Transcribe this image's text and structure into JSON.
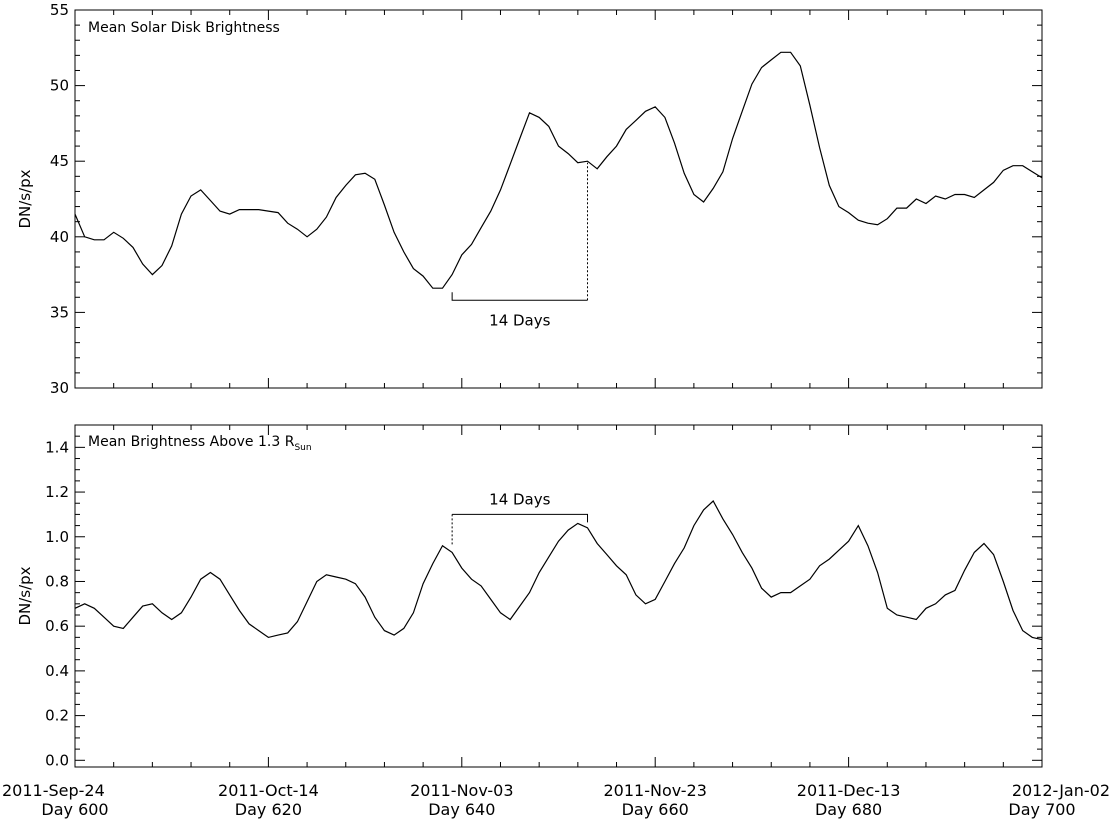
{
  "chart_data": [
    {
      "type": "line",
      "title": "Mean Solar Disk Brightness",
      "ylabel": "DN/s/px",
      "ylim": [
        30,
        55
      ],
      "xlim": [
        600,
        700
      ],
      "yticks": [
        "30",
        "35",
        "40",
        "45",
        "50",
        "55"
      ],
      "grid": false,
      "annotation": {
        "text": "14 Days",
        "start_day": 639,
        "end_day": 653,
        "bracket_value": 35.8,
        "anchor_value": 44.9
      },
      "series": [
        {
          "x": [
            600,
            601,
            602,
            603,
            604,
            605,
            606,
            607,
            608,
            609,
            610,
            611,
            612,
            613,
            614,
            615,
            616,
            617,
            618,
            619,
            620,
            621,
            622,
            623,
            624,
            625,
            626,
            627,
            628,
            629,
            630,
            631,
            632,
            633,
            634,
            635,
            636,
            637,
            638,
            639,
            640,
            641,
            642,
            643,
            644,
            645,
            646,
            647,
            648,
            649,
            650,
            651,
            652,
            653,
            654,
            655,
            656,
            657,
            658,
            659,
            660,
            661,
            662,
            663,
            664,
            665,
            666,
            667,
            668,
            669,
            670,
            671,
            672,
            673,
            674,
            675,
            676,
            677,
            678,
            679,
            680,
            681,
            682,
            683,
            684,
            685,
            686,
            687,
            688,
            689,
            690,
            691,
            692,
            693,
            694,
            695,
            696,
            697,
            698,
            699,
            700
          ],
          "values": [
            41.5,
            40.0,
            39.8,
            39.8,
            40.3,
            39.9,
            39.3,
            38.2,
            37.5,
            38.1,
            39.4,
            41.5,
            42.7,
            43.1,
            42.4,
            41.7,
            41.5,
            41.8,
            41.8,
            41.8,
            41.7,
            41.6,
            40.9,
            40.5,
            40.0,
            40.5,
            41.3,
            42.6,
            43.4,
            44.1,
            44.2,
            43.8,
            42.1,
            40.3,
            39.0,
            37.9,
            37.4,
            36.6,
            36.6,
            37.5,
            38.8,
            39.5,
            40.6,
            41.7,
            43.1,
            44.8,
            46.5,
            48.2,
            47.9,
            47.3,
            46.0,
            45.5,
            44.9,
            45.0,
            44.5,
            45.3,
            46.0,
            47.1,
            47.7,
            48.3,
            48.6,
            47.9,
            46.2,
            44.2,
            42.8,
            42.3,
            43.2,
            44.3,
            46.5,
            48.3,
            50.1,
            51.2,
            51.7,
            52.2,
            52.2,
            51.3,
            48.7,
            45.9,
            43.4,
            42.0,
            41.6,
            41.1,
            40.9,
            40.8,
            41.2,
            41.9,
            41.9,
            42.5,
            42.2,
            42.7,
            42.5,
            42.8,
            42.8,
            42.6,
            43.1,
            43.6,
            44.4,
            44.7,
            44.7,
            44.3,
            43.9
          ]
        }
      ]
    },
    {
      "type": "line",
      "title": "Mean Brightness Above 1.3 R",
      "title_subscript": "Sun",
      "ylabel": "DN/s/px",
      "ylim": [
        -0.03,
        1.5
      ],
      "xlim": [
        600,
        700
      ],
      "yticks": [
        "0.0",
        "0.2",
        "0.4",
        "0.6",
        "0.8",
        "1.0",
        "1.2",
        "1.4"
      ],
      "grid": false,
      "annotation": {
        "text": "14 Days",
        "start_day": 639,
        "end_day": 653,
        "bracket_value": 1.1,
        "anchor_value": 0.96
      },
      "xticks": [
        {
          "date": "2011-Sep-24",
          "day": "Day 600"
        },
        {
          "date": "2011-Oct-14",
          "day": "Day 620"
        },
        {
          "date": "2011-Nov-03",
          "day": "Day 640"
        },
        {
          "date": "2011-Nov-23",
          "day": "Day 660"
        },
        {
          "date": "2011-Dec-13",
          "day": "Day 680"
        },
        {
          "date": "2012-Jan-02",
          "day": "Day 700"
        }
      ],
      "series": [
        {
          "x": [
            600,
            601,
            602,
            603,
            604,
            605,
            606,
            607,
            608,
            609,
            610,
            611,
            612,
            613,
            614,
            615,
            616,
            617,
            618,
            619,
            620,
            621,
            622,
            623,
            624,
            625,
            626,
            627,
            628,
            629,
            630,
            631,
            632,
            633,
            634,
            635,
            636,
            637,
            638,
            639,
            640,
            641,
            642,
            643,
            644,
            645,
            646,
            647,
            648,
            649,
            650,
            651,
            652,
            653,
            654,
            655,
            656,
            657,
            658,
            659,
            660,
            661,
            662,
            663,
            664,
            665,
            666,
            667,
            668,
            669,
            670,
            671,
            672,
            673,
            674,
            675,
            676,
            677,
            678,
            679,
            680,
            681,
            682,
            683,
            684,
            685,
            686,
            687,
            688,
            689,
            690,
            691,
            692,
            693,
            694,
            695,
            696,
            697,
            698,
            699,
            700
          ],
          "values": [
            0.68,
            0.7,
            0.68,
            0.64,
            0.6,
            0.59,
            0.64,
            0.69,
            0.7,
            0.66,
            0.63,
            0.66,
            0.73,
            0.81,
            0.84,
            0.81,
            0.74,
            0.67,
            0.61,
            0.58,
            0.55,
            0.56,
            0.57,
            0.62,
            0.71,
            0.8,
            0.83,
            0.82,
            0.81,
            0.79,
            0.73,
            0.64,
            0.58,
            0.56,
            0.59,
            0.66,
            0.79,
            0.88,
            0.96,
            0.93,
            0.86,
            0.81,
            0.78,
            0.72,
            0.66,
            0.63,
            0.69,
            0.75,
            0.84,
            0.91,
            0.98,
            1.03,
            1.06,
            1.04,
            0.97,
            0.92,
            0.87,
            0.83,
            0.74,
            0.7,
            0.72,
            0.8,
            0.88,
            0.95,
            1.05,
            1.12,
            1.16,
            1.08,
            1.01,
            0.93,
            0.86,
            0.77,
            0.73,
            0.75,
            0.75,
            0.78,
            0.81,
            0.87,
            0.9,
            0.94,
            0.98,
            1.05,
            0.96,
            0.84,
            0.68,
            0.65,
            0.64,
            0.63,
            0.68,
            0.7,
            0.74,
            0.76,
            0.85,
            0.93,
            0.97,
            0.92,
            0.8,
            0.67,
            0.58,
            0.55,
            0.54
          ]
        }
      ]
    }
  ]
}
